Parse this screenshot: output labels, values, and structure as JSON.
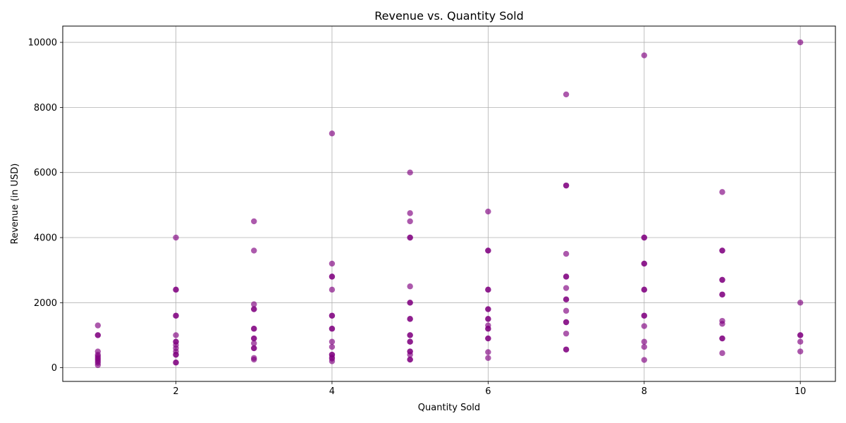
{
  "chart_data": {
    "type": "scatter",
    "title": "Revenue vs. Quantity Sold",
    "xlabel": "Quantity Sold",
    "ylabel": "Revenue (in USD)",
    "xlim": [
      0.55,
      10.45
    ],
    "ylim": [
      -420,
      10500
    ],
    "xticks": [
      2,
      4,
      6,
      8,
      10
    ],
    "yticks": [
      0,
      2000,
      4000,
      6000,
      8000,
      10000
    ],
    "grid": true,
    "marker_color": "#800080",
    "marker_opacity": 0.65,
    "points": [
      [
        1,
        80
      ],
      [
        1,
        150
      ],
      [
        1,
        200
      ],
      [
        1,
        250
      ],
      [
        1,
        300
      ],
      [
        1,
        350
      ],
      [
        1,
        400
      ],
      [
        1,
        500
      ],
      [
        1,
        1000
      ],
      [
        1,
        1000
      ],
      [
        1,
        1300
      ],
      [
        2,
        160
      ],
      [
        2,
        160
      ],
      [
        2,
        400
      ],
      [
        2,
        400
      ],
      [
        2,
        500
      ],
      [
        2,
        600
      ],
      [
        2,
        700
      ],
      [
        2,
        800
      ],
      [
        2,
        800
      ],
      [
        2,
        1000
      ],
      [
        2,
        1600
      ],
      [
        2,
        1600
      ],
      [
        2,
        2400
      ],
      [
        2,
        2400
      ],
      [
        2,
        4000
      ],
      [
        3,
        250
      ],
      [
        3,
        300
      ],
      [
        3,
        600
      ],
      [
        3,
        600
      ],
      [
        3,
        750
      ],
      [
        3,
        900
      ],
      [
        3,
        900
      ],
      [
        3,
        1200
      ],
      [
        3,
        1200
      ],
      [
        3,
        1800
      ],
      [
        3,
        1800
      ],
      [
        3,
        1950
      ],
      [
        3,
        3600
      ],
      [
        3,
        4500
      ],
      [
        4,
        200
      ],
      [
        4,
        280
      ],
      [
        4,
        320
      ],
      [
        4,
        400
      ],
      [
        4,
        400
      ],
      [
        4,
        640
      ],
      [
        4,
        800
      ],
      [
        4,
        1200
      ],
      [
        4,
        1200
      ],
      [
        4,
        1600
      ],
      [
        4,
        1600
      ],
      [
        4,
        2400
      ],
      [
        4,
        2800
      ],
      [
        4,
        2800
      ],
      [
        4,
        3200
      ],
      [
        4,
        7200
      ],
      [
        5,
        250
      ],
      [
        5,
        250
      ],
      [
        5,
        400
      ],
      [
        5,
        500
      ],
      [
        5,
        500
      ],
      [
        5,
        800
      ],
      [
        5,
        800
      ],
      [
        5,
        1000
      ],
      [
        5,
        1000
      ],
      [
        5,
        1500
      ],
      [
        5,
        1500
      ],
      [
        5,
        2000
      ],
      [
        5,
        2000
      ],
      [
        5,
        2500
      ],
      [
        5,
        4000
      ],
      [
        5,
        4000
      ],
      [
        5,
        4500
      ],
      [
        5,
        4750
      ],
      [
        5,
        6000
      ],
      [
        6,
        300
      ],
      [
        6,
        480
      ],
      [
        6,
        900
      ],
      [
        6,
        900
      ],
      [
        6,
        1200
      ],
      [
        6,
        1200
      ],
      [
        6,
        1300
      ],
      [
        6,
        1500
      ],
      [
        6,
        1500
      ],
      [
        6,
        1800
      ],
      [
        6,
        1800
      ],
      [
        6,
        2400
      ],
      [
        6,
        2400
      ],
      [
        6,
        3600
      ],
      [
        6,
        3600
      ],
      [
        6,
        4800
      ],
      [
        7,
        560
      ],
      [
        7,
        560
      ],
      [
        7,
        1050
      ],
      [
        7,
        1400
      ],
      [
        7,
        1400
      ],
      [
        7,
        1750
      ],
      [
        7,
        2100
      ],
      [
        7,
        2100
      ],
      [
        7,
        2450
      ],
      [
        7,
        2800
      ],
      [
        7,
        2800
      ],
      [
        7,
        3500
      ],
      [
        7,
        5600
      ],
      [
        7,
        5600
      ],
      [
        7,
        8400
      ],
      [
        8,
        240
      ],
      [
        8,
        640
      ],
      [
        8,
        800
      ],
      [
        8,
        1280
      ],
      [
        8,
        1600
      ],
      [
        8,
        1600
      ],
      [
        8,
        2400
      ],
      [
        8,
        2400
      ],
      [
        8,
        3200
      ],
      [
        8,
        3200
      ],
      [
        8,
        4000
      ],
      [
        8,
        4000
      ],
      [
        8,
        9600
      ],
      [
        9,
        450
      ],
      [
        9,
        900
      ],
      [
        9,
        900
      ],
      [
        9,
        1350
      ],
      [
        9,
        1440
      ],
      [
        9,
        2250
      ],
      [
        9,
        2250
      ],
      [
        9,
        2700
      ],
      [
        9,
        2700
      ],
      [
        9,
        3600
      ],
      [
        9,
        3600
      ],
      [
        9,
        5400
      ],
      [
        10,
        500
      ],
      [
        10,
        800
      ],
      [
        10,
        1000
      ],
      [
        10,
        1000
      ],
      [
        10,
        2000
      ],
      [
        10,
        10000
      ]
    ]
  }
}
